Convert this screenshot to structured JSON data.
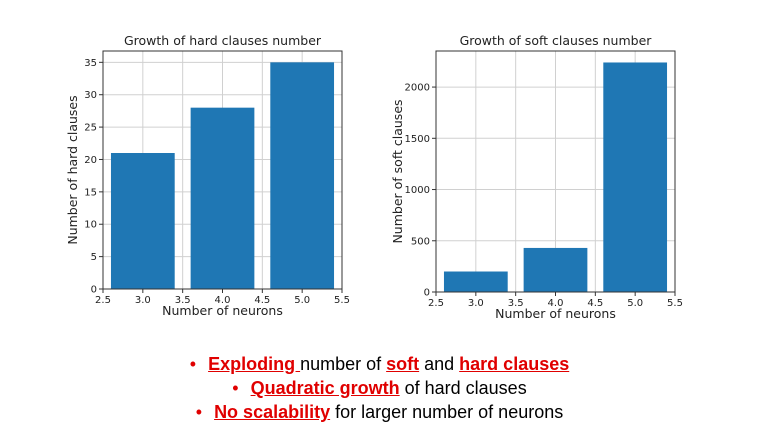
{
  "chart_data": [
    {
      "type": "bar",
      "title": "Growth of hard clauses number",
      "xlabel": "Number of neurons",
      "ylabel": "Number of hard clauses",
      "x": [
        3.0,
        4.0,
        5.0
      ],
      "values": [
        21,
        28,
        35
      ],
      "xlim": [
        2.5,
        5.5
      ],
      "ylim": [
        0,
        36.75
      ],
      "xticks": [
        "2.5",
        "3.0",
        "3.5",
        "4.0",
        "4.5",
        "5.0",
        "5.5"
      ],
      "yticks": [
        "0",
        "5",
        "10",
        "15",
        "20",
        "25",
        "30",
        "35"
      ],
      "grid": true,
      "bar_color": "#1f77b4"
    },
    {
      "type": "bar",
      "title": "Growth of soft clauses number",
      "xlabel": "Number of neurons",
      "ylabel": "Number of soft clauses",
      "x": [
        3.0,
        4.0,
        5.0
      ],
      "values": [
        200,
        430,
        2240
      ],
      "xlim": [
        2.5,
        5.5
      ],
      "ylim": [
        0,
        2352
      ],
      "xticks": [
        "2.5",
        "3.0",
        "3.5",
        "4.0",
        "4.5",
        "5.0",
        "5.5"
      ],
      "yticks": [
        "0",
        "500",
        "1000",
        "1500",
        "2000"
      ],
      "grid": true,
      "bar_color": "#1f77b4"
    }
  ],
  "bullets": [
    {
      "dot": "•",
      "seg1": "Exploding ",
      "seg2": "number of ",
      "seg3": "soft",
      "seg4": " and ",
      "seg5": "hard clauses"
    },
    {
      "dot": "•",
      "seg1": "Quadratic growth",
      "seg2": " of hard clauses"
    },
    {
      "dot": "•",
      "seg1": "No scalability",
      "seg2": " for larger number of neurons"
    }
  ],
  "colors": {
    "accent_red": "#e00000",
    "bar": "#1f77b4",
    "grid": "#d0d0d0"
  }
}
